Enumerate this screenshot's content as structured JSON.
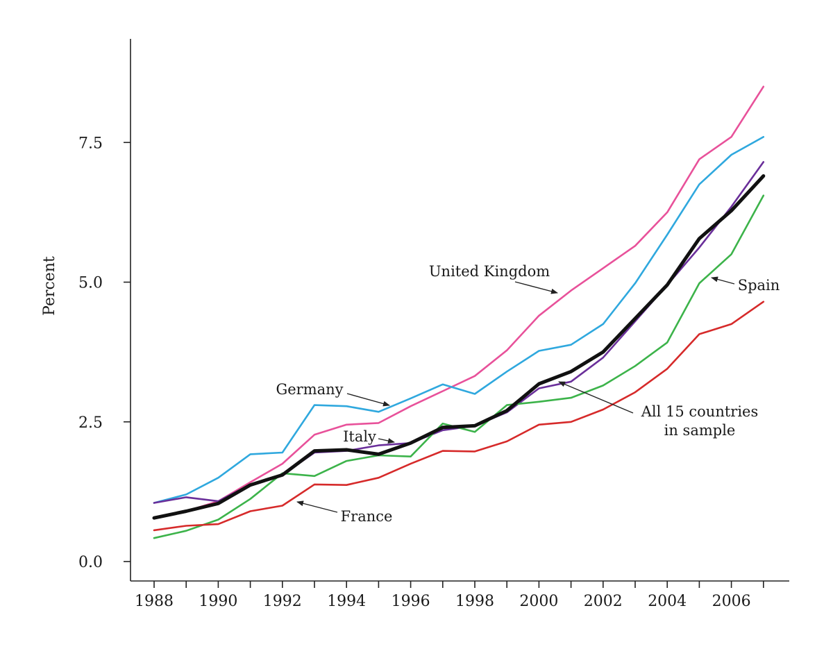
{
  "chart_data": {
    "type": "line",
    "title": "",
    "xlabel": "",
    "ylabel": "Percent",
    "xlim": [
      1987.6,
      2007.9
    ],
    "ylim": [
      -0.35,
      9.4
    ],
    "x_ticks": [
      "1988",
      "1990",
      "1992",
      "1994",
      "1996",
      "1998",
      "2000",
      "2002",
      "2004",
      "2006"
    ],
    "y_ticks": [
      "0.0",
      "2.5",
      "5.0",
      "7.5"
    ],
    "grid": false,
    "legend": "none (series labeled by inline annotations)",
    "x": [
      1988,
      1989,
      1990,
      1991,
      1992,
      1993,
      1994,
      1995,
      1996,
      1997,
      1998,
      1999,
      2000,
      2001,
      2002,
      2003,
      2004,
      2005,
      2006,
      2007
    ],
    "series": [
      {
        "name": "United Kingdom",
        "color": "#e8519a",
        "values": [
          0.78,
          0.9,
          1.08,
          1.42,
          1.75,
          2.27,
          2.45,
          2.48,
          2.78,
          3.05,
          3.32,
          3.78,
          4.4,
          4.85,
          5.25,
          5.65,
          6.25,
          7.2,
          7.6,
          8.5
        ]
      },
      {
        "name": "Germany",
        "color": "#2fa8de",
        "values": [
          1.05,
          1.2,
          1.5,
          1.92,
          1.95,
          2.8,
          2.78,
          2.68,
          2.92,
          3.17,
          3.0,
          3.4,
          3.77,
          3.88,
          4.25,
          4.98,
          5.85,
          6.75,
          7.28,
          7.6
        ]
      },
      {
        "name": "Italy",
        "color": "#6a2f9a",
        "values": [
          1.05,
          1.15,
          1.08,
          1.38,
          1.55,
          1.95,
          1.98,
          2.08,
          2.12,
          2.35,
          2.43,
          2.67,
          3.1,
          3.22,
          3.65,
          4.3,
          4.95,
          5.62,
          6.35,
          7.15
        ]
      },
      {
        "name": "Spain",
        "color": "#3cb34a",
        "values": [
          0.42,
          0.55,
          0.75,
          1.12,
          1.58,
          1.53,
          1.8,
          1.9,
          1.88,
          2.47,
          2.32,
          2.8,
          2.86,
          2.93,
          3.15,
          3.5,
          3.92,
          4.98,
          5.5,
          6.55
        ]
      },
      {
        "name": "France",
        "color": "#d62a2a",
        "values": [
          0.56,
          0.64,
          0.67,
          0.9,
          1.0,
          1.38,
          1.37,
          1.5,
          1.75,
          1.98,
          1.97,
          2.15,
          2.45,
          2.5,
          2.72,
          3.03,
          3.45,
          4.07,
          4.25,
          4.65
        ]
      },
      {
        "name": "All 15 countries in sample",
        "color": "#111111",
        "values": [
          0.78,
          0.9,
          1.04,
          1.37,
          1.55,
          1.98,
          2.0,
          1.92,
          2.12,
          2.4,
          2.43,
          2.7,
          3.18,
          3.4,
          3.75,
          4.35,
          4.95,
          5.78,
          6.28,
          6.9
        ]
      }
    ],
    "annotations": [
      {
        "label": "United Kingdom",
        "series": "United Kingdom"
      },
      {
        "label": "Germany",
        "series": "Germany"
      },
      {
        "label": "Italy",
        "series": "Italy"
      },
      {
        "label": "France",
        "series": "France"
      },
      {
        "label": "Spain",
        "series": "Spain"
      },
      {
        "label": "All 15 countries",
        "label2": "in sample",
        "series": "All 15 countries in sample"
      }
    ]
  }
}
